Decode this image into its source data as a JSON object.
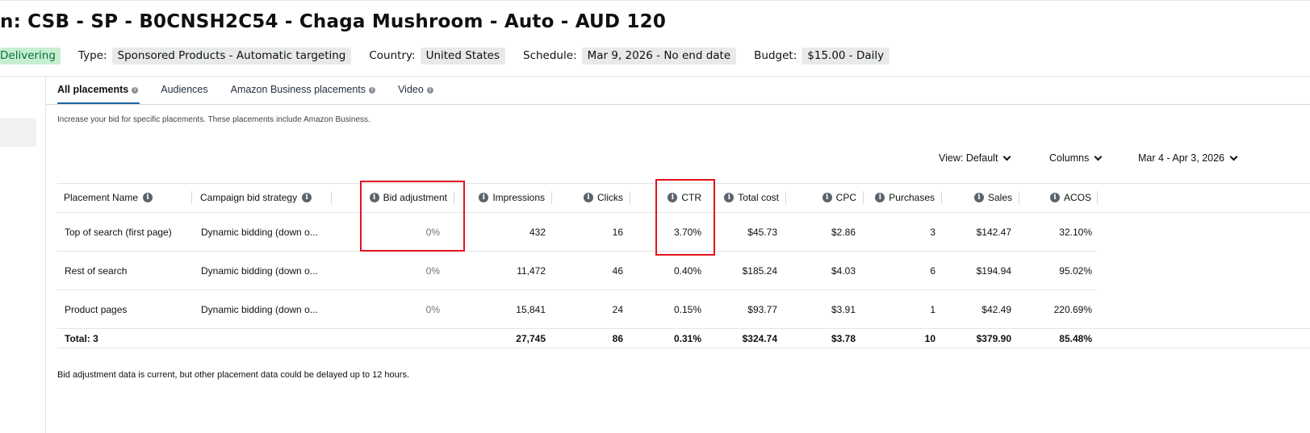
{
  "header": {
    "title": "n: CSB - SP - B0CNSH2C54 - Chaga Mushroom - Auto - AUD 120",
    "status": "Delivering",
    "type_label": "Type:",
    "type_value": "Sponsored Products - Automatic targeting",
    "country_label": "Country:",
    "country_value": "United States",
    "schedule_label": "Schedule:",
    "schedule_value": "Mar 9, 2026 - No end date",
    "budget_label": "Budget:",
    "budget_value": "$15.00 - Daily"
  },
  "tabs": [
    {
      "label": "All placements",
      "active": true,
      "info": true
    },
    {
      "label": "Audiences",
      "active": false,
      "info": false
    },
    {
      "label": "Amazon Business placements",
      "active": false,
      "info": true
    },
    {
      "label": "Video",
      "active": false,
      "info": true
    }
  ],
  "helper_text": "Increase your bid for specific placements. These placements include Amazon Business.",
  "toolbar": {
    "view": "View: Default",
    "columns": "Columns",
    "date_range": "Mar 4 - Apr 3, 2026"
  },
  "table": {
    "headers": {
      "placement_name": "Placement Name",
      "bid_strategy": "Campaign bid strategy",
      "bid_adjustment": "Bid adjustment",
      "impressions": "Impressions",
      "clicks": "Clicks",
      "ctr": "CTR",
      "total_cost": "Total cost",
      "cpc": "CPC",
      "purchases": "Purchases",
      "sales": "Sales",
      "acos": "ACOS"
    },
    "rows": [
      {
        "placement": "Top of search (first page)",
        "strategy": "Dynamic bidding (down o...",
        "bid_adjustment": "0%",
        "impressions": "432",
        "clicks": "16",
        "ctr": "3.70%",
        "total_cost": "$45.73",
        "cpc": "$2.86",
        "purchases": "3",
        "sales": "$142.47",
        "acos": "32.10%"
      },
      {
        "placement": "Rest of search",
        "strategy": "Dynamic bidding (down o...",
        "bid_adjustment": "0%",
        "impressions": "11,472",
        "clicks": "46",
        "ctr": "0.40%",
        "total_cost": "$185.24",
        "cpc": "$4.03",
        "purchases": "6",
        "sales": "$194.94",
        "acos": "95.02%"
      },
      {
        "placement": "Product pages",
        "strategy": "Dynamic bidding (down o...",
        "bid_adjustment": "0%",
        "impressions": "15,841",
        "clicks": "24",
        "ctr": "0.15%",
        "total_cost": "$93.77",
        "cpc": "$3.91",
        "purchases": "1",
        "sales": "$42.49",
        "acos": "220.69%"
      }
    ],
    "total": {
      "label": "Total: 3",
      "impressions": "27,745",
      "clicks": "86",
      "ctr": "0.31%",
      "total_cost": "$324.74",
      "cpc": "$3.78",
      "purchases": "10",
      "sales": "$379.90",
      "acos": "85.48%"
    }
  },
  "footnote": "Bid adjustment data is current, but other placement data could be delayed up to 12 hours.",
  "colors": {
    "highlight": "#e4131a",
    "active_tab": "#2162a1",
    "status_bg": "#c6efd0",
    "status_text": "#0b6e33"
  }
}
